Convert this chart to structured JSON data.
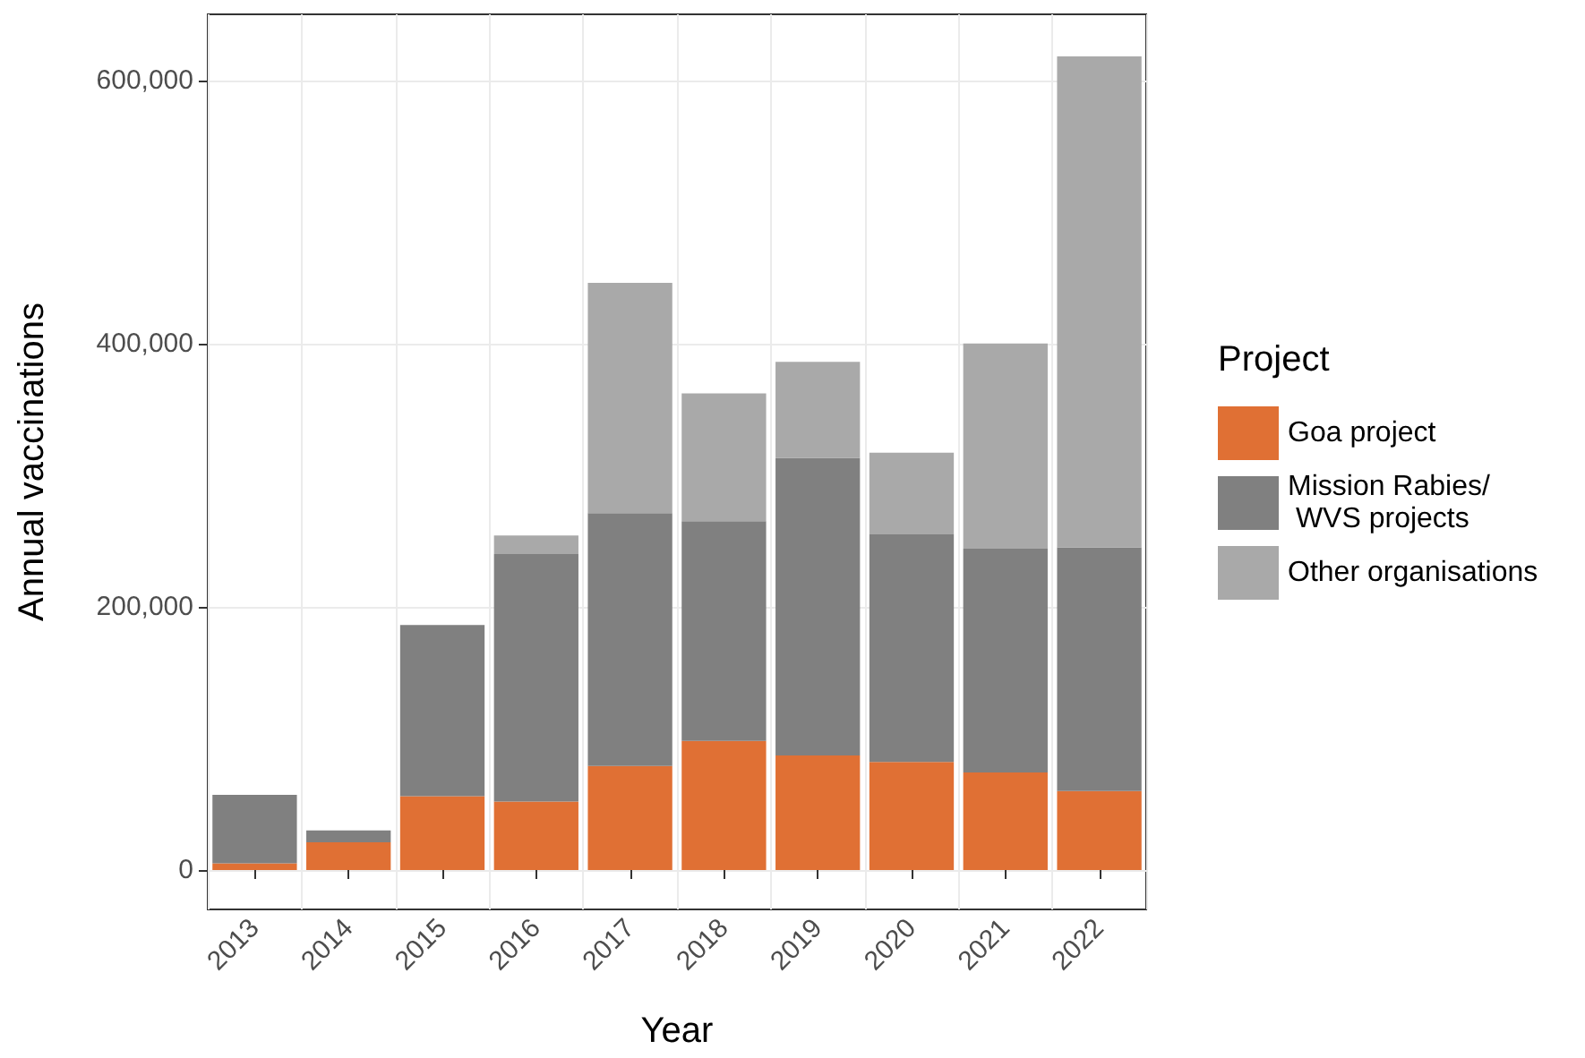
{
  "chart_data": {
    "type": "bar",
    "stacked": true,
    "xlabel": "Year",
    "ylabel": "Annual vaccinations",
    "legend_title": "Project",
    "legend": "right",
    "categories": [
      "2013",
      "2014",
      "2015",
      "2016",
      "2017",
      "2018",
      "2019",
      "2020",
      "2021",
      "2022"
    ],
    "series": [
      {
        "name": "Goa project",
        "color": "#e07034",
        "values": [
          5000,
          21000,
          56000,
          52000,
          79000,
          98000,
          87000,
          82000,
          74000,
          60000
        ]
      },
      {
        "name": "Mission Rabies/\n WVS projects",
        "color": "#808080",
        "values": [
          52000,
          9000,
          130000,
          188000,
          192000,
          167000,
          226000,
          173000,
          170000,
          185000
        ]
      },
      {
        "name": "Other organisations",
        "color": "#a9a9a9",
        "values": [
          null,
          null,
          null,
          14000,
          175000,
          97000,
          73000,
          62000,
          156000,
          373000
        ]
      }
    ],
    "ylim": [
      -30000,
      650000
    ],
    "yticks": [
      0,
      {
        "value": 200000,
        "label": "200,000"
      },
      {
        "value": 400000,
        "label": "400,000"
      },
      {
        "value": 600000,
        "label": "600,000"
      }
    ],
    "grid": true
  }
}
